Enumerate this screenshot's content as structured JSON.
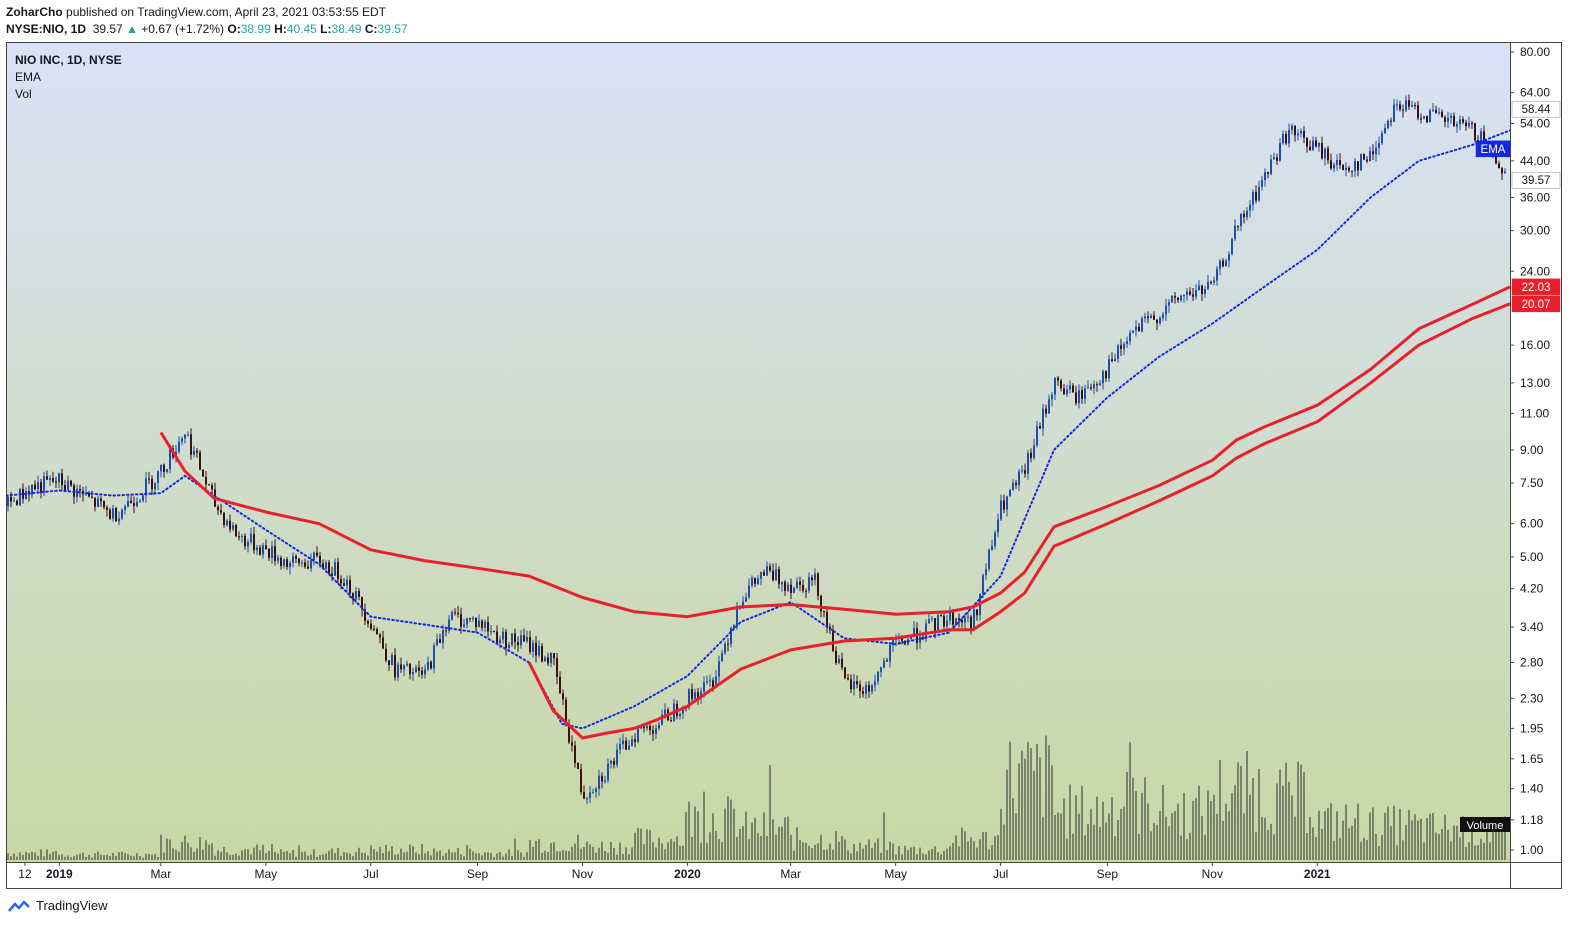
{
  "header": {
    "author": "ZoharCho",
    "published_text": "published on TradingView.com, April 23, 2021 03:53:55 EDT",
    "symbol": "NYSE:NIO, 1D",
    "last": "39.57",
    "change": "+0.67 (+1.72%)",
    "open_label": "O:",
    "open": "38.99",
    "high_label": "H:",
    "high": "40.45",
    "low_label": "L:",
    "low": "38.49",
    "close_label": "C:",
    "close": "39.57"
  },
  "legend": [
    "NIO INC, 1D, NYSE",
    "EMA",
    "Vol"
  ],
  "footer": {
    "brand": "TradingView",
    "icon": "tradingview-logo-icon"
  },
  "colors": {
    "bg_top": "#d8e2f6",
    "bg_bottom": "#c8d7a4",
    "candle_up": "#1e4fae",
    "candle_down": "#3a1010",
    "ema_blue": "#1428e0",
    "ema_red": "#e8202c",
    "volume": "#2b2b2b",
    "change_up": "#26a69a"
  },
  "chart_data": {
    "type": "line",
    "title": "NIO INC, 1D, NYSE",
    "y_scale": "log",
    "y_ticks": [
      "80.00",
      "64.00",
      "54.00",
      "44.00",
      "36.00",
      "30.00",
      "24.00",
      "16.00",
      "13.00",
      "11.00",
      "9.00",
      "7.50",
      "6.00",
      "5.00",
      "4.20",
      "3.40",
      "2.80",
      "2.30",
      "1.95",
      "1.65",
      "1.40",
      "1.18",
      "1.00"
    ],
    "x_ticks": [
      "12",
      "2019",
      "Mar",
      "May",
      "Jul",
      "Sep",
      "Nov",
      "2020",
      "Mar",
      "May",
      "Jul",
      "Sep",
      "Nov",
      "2021"
    ],
    "x_range": [
      "2018-12-01",
      "2021-04-23"
    ],
    "price_labels": [
      {
        "text": "58.44",
        "value": 58.44,
        "style": "white"
      },
      {
        "text": "EMA",
        "value": 47.0,
        "style": "blue"
      },
      {
        "text": "39.57",
        "value": 39.57,
        "style": "white"
      },
      {
        "text": "22.03",
        "value": 22.03,
        "style": "red"
      },
      {
        "text": "20.07",
        "value": 20.07,
        "style": "red"
      }
    ],
    "volume_label": "Volume",
    "series": [
      {
        "name": "NIO",
        "style": "candles-approx",
        "x": [
          "2018-12-01",
          "2018-12-15",
          "2019-01-01",
          "2019-01-15",
          "2019-02-01",
          "2019-02-15",
          "2019-03-01",
          "2019-03-15",
          "2019-04-01",
          "2019-04-15",
          "2019-05-01",
          "2019-05-15",
          "2019-06-01",
          "2019-06-15",
          "2019-07-01",
          "2019-07-15",
          "2019-08-01",
          "2019-08-15",
          "2019-09-01",
          "2019-09-15",
          "2019-10-01",
          "2019-10-15",
          "2019-11-01",
          "2019-11-15",
          "2019-12-01",
          "2019-12-15",
          "2020-01-01",
          "2020-01-15",
          "2020-02-01",
          "2020-02-15",
          "2020-03-01",
          "2020-03-15",
          "2020-04-01",
          "2020-04-15",
          "2020-05-01",
          "2020-05-15",
          "2020-06-01",
          "2020-06-15",
          "2020-07-01",
          "2020-07-15",
          "2020-08-01",
          "2020-08-15",
          "2020-09-01",
          "2020-09-15",
          "2020-10-01",
          "2020-10-15",
          "2020-11-01",
          "2020-11-15",
          "2020-12-01",
          "2020-12-15",
          "2021-01-01",
          "2021-01-15",
          "2021-02-01",
          "2021-02-15",
          "2021-03-01",
          "2021-03-15",
          "2021-04-01",
          "2021-04-15",
          "2021-04-23"
        ],
        "y": [
          6.6,
          7.3,
          7.6,
          7.0,
          6.3,
          7.0,
          8.0,
          10.0,
          6.7,
          5.6,
          5.2,
          4.8,
          4.9,
          4.5,
          3.5,
          2.7,
          2.6,
          3.6,
          3.5,
          3.2,
          3.1,
          2.8,
          1.35,
          1.55,
          1.9,
          2.0,
          2.3,
          2.5,
          4.0,
          4.6,
          4.3,
          4.4,
          2.5,
          2.4,
          3.1,
          3.3,
          3.6,
          3.5,
          6.5,
          8.0,
          13.0,
          12.0,
          14.0,
          17.0,
          19.0,
          21.0,
          22.0,
          30.0,
          40.0,
          52.0,
          47.0,
          42.0,
          45.0,
          60.0,
          58.0,
          55.0,
          52.0,
          45.0,
          39.57
        ]
      },
      {
        "name": "EMA",
        "style": "dotted",
        "x": [
          "2018-12-01",
          "2019-01-01",
          "2019-02-01",
          "2019-03-01",
          "2019-03-15",
          "2019-04-01",
          "2019-05-01",
          "2019-06-01",
          "2019-07-01",
          "2019-08-01",
          "2019-09-01",
          "2019-10-01",
          "2019-10-20",
          "2019-11-01",
          "2019-12-01",
          "2020-01-01",
          "2020-02-01",
          "2020-03-01",
          "2020-04-01",
          "2020-05-01",
          "2020-06-01",
          "2020-07-01",
          "2020-08-01",
          "2020-09-01",
          "2020-10-01",
          "2020-11-01",
          "2020-12-01",
          "2021-01-01",
          "2021-02-01",
          "2021-03-01",
          "2021-04-01",
          "2021-04-23"
        ],
        "y": [
          7.0,
          7.2,
          7.0,
          7.1,
          7.8,
          7.0,
          5.8,
          4.8,
          3.6,
          3.45,
          3.3,
          2.8,
          2.0,
          1.95,
          2.2,
          2.6,
          3.5,
          3.9,
          3.2,
          3.1,
          3.3,
          4.5,
          9.0,
          12.0,
          15.0,
          18.0,
          22.0,
          27.0,
          36.0,
          44.0,
          48.0,
          52.0
        ]
      },
      {
        "name": "EMA 1",
        "style": "solid",
        "x": [
          "2019-03-01",
          "2019-03-15",
          "2019-04-01",
          "2019-05-01",
          "2019-06-01",
          "2019-07-01",
          "2019-08-01",
          "2019-09-01",
          "2019-10-01",
          "2019-11-01",
          "2019-12-01",
          "2020-01-01",
          "2020-02-01",
          "2020-03-01",
          "2020-04-01",
          "2020-05-01",
          "2020-06-01",
          "2020-06-15",
          "2020-07-01",
          "2020-07-15",
          "2020-08-01",
          "2020-09-01",
          "2020-10-01",
          "2020-11-01",
          "2020-11-15",
          "2020-12-01",
          "2021-01-01",
          "2021-02-01",
          "2021-03-01",
          "2021-04-01",
          "2021-04-23"
        ],
        "y": [
          9.9,
          8.0,
          6.9,
          6.4,
          6.0,
          5.2,
          4.9,
          4.7,
          4.5,
          4.0,
          3.7,
          3.6,
          3.8,
          3.85,
          3.75,
          3.65,
          3.7,
          3.8,
          4.1,
          4.6,
          5.9,
          6.6,
          7.4,
          8.5,
          9.5,
          10.2,
          11.5,
          14.0,
          17.5,
          20.0,
          22.03
        ]
      },
      {
        "name": "EMA 2",
        "style": "solid",
        "x": [
          "2019-10-01",
          "2019-10-15",
          "2019-11-01",
          "2019-11-15",
          "2019-12-01",
          "2019-12-15",
          "2020-01-01",
          "2020-02-01",
          "2020-03-01",
          "2020-04-01",
          "2020-05-01",
          "2020-06-01",
          "2020-06-15",
          "2020-07-01",
          "2020-07-15",
          "2020-08-01",
          "2020-09-01",
          "2020-10-01",
          "2020-11-01",
          "2020-11-15",
          "2020-12-01",
          "2021-01-01",
          "2021-02-01",
          "2021-03-01",
          "2021-04-01",
          "2021-04-23"
        ],
        "y": [
          2.8,
          2.15,
          1.85,
          1.9,
          1.95,
          2.05,
          2.2,
          2.7,
          3.0,
          3.15,
          3.2,
          3.35,
          3.35,
          3.7,
          4.1,
          5.3,
          6.0,
          6.8,
          7.8,
          8.6,
          9.3,
          10.5,
          13.0,
          16.0,
          18.5,
          20.07
        ]
      }
    ],
    "volume": {
      "x": [
        "2018-12",
        "2019-01",
        "2019-02",
        "2019-03",
        "2019-04",
        "2019-05",
        "2019-06",
        "2019-07",
        "2019-08",
        "2019-09",
        "2019-10",
        "2019-11",
        "2019-12",
        "2020-01",
        "2020-02",
        "2020-03",
        "2020-04",
        "2020-05",
        "2020-06",
        "2020-07",
        "2020-08",
        "2020-09",
        "2020-10",
        "2020-11",
        "2020-12",
        "2021-01",
        "2021-02",
        "2021-03",
        "2021-04"
      ],
      "values": [
        10,
        8,
        8,
        25,
        15,
        10,
        12,
        15,
        12,
        10,
        25,
        20,
        30,
        60,
        45,
        30,
        20,
        15,
        30,
        120,
        70,
        80,
        70,
        100,
        90,
        55,
        50,
        45,
        40
      ]
    }
  }
}
